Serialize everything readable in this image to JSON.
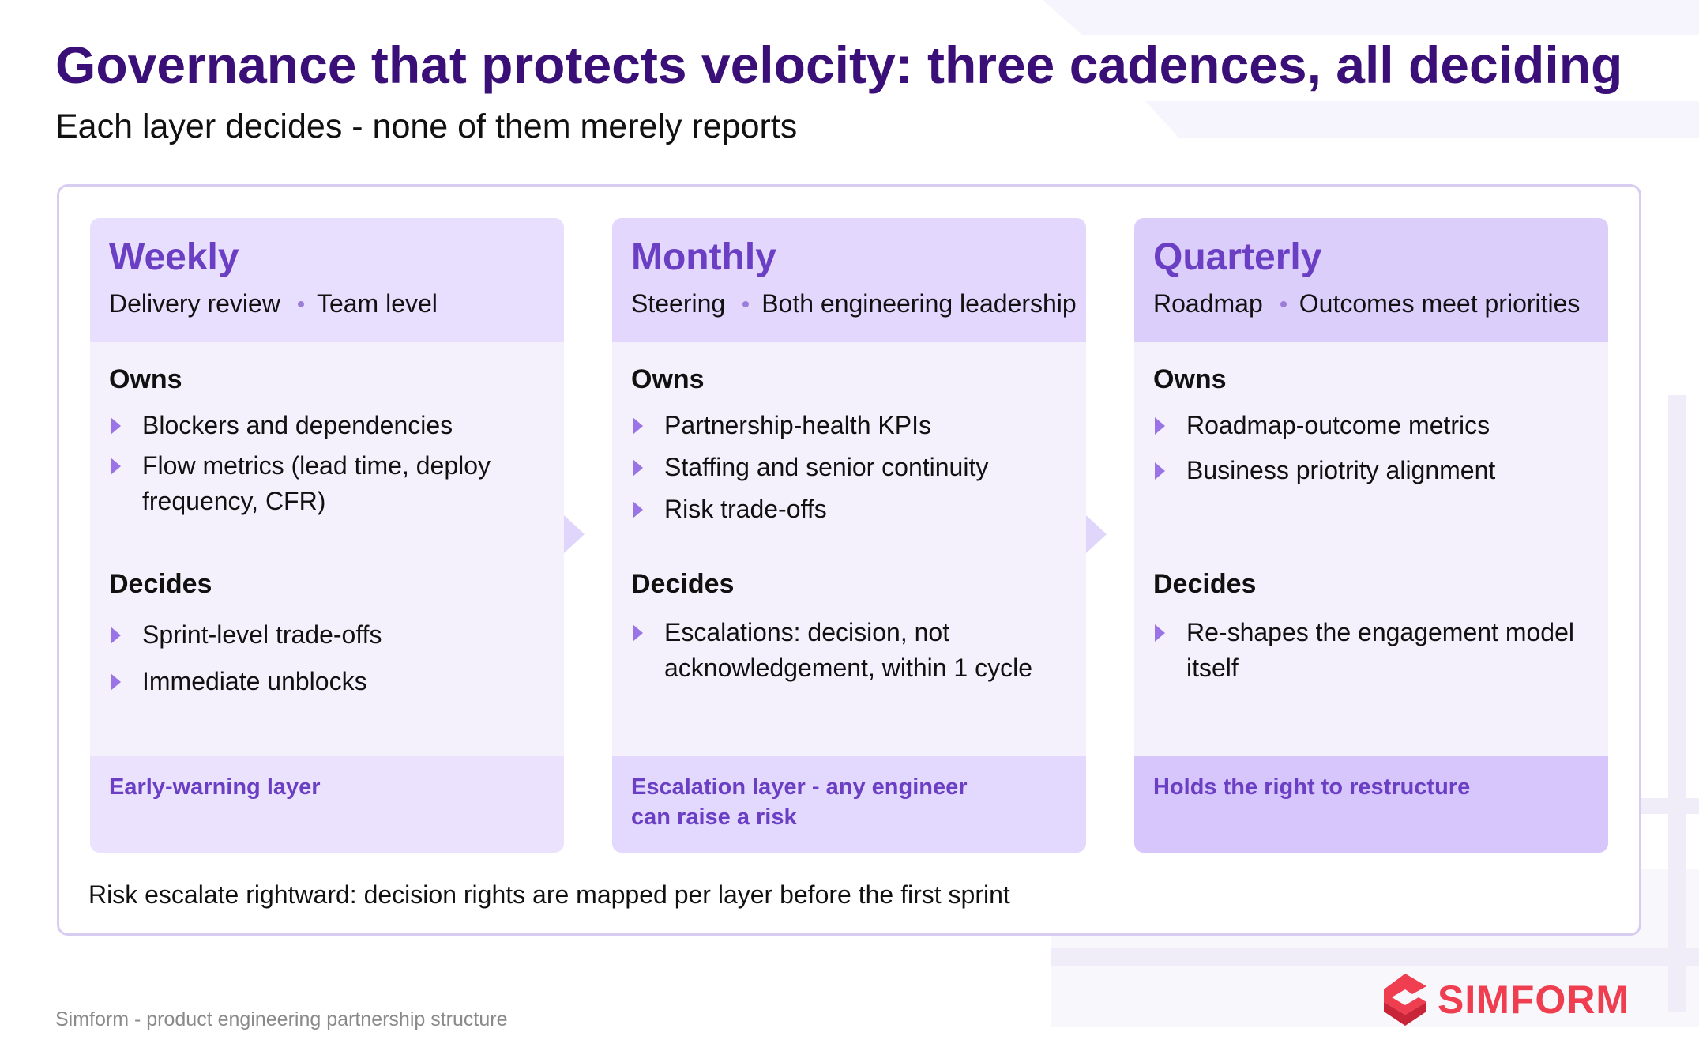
{
  "header": {
    "title": "Governance that protects velocity: three cadences, all deciding",
    "subtitle": "Each layer decides - none of them merely reports"
  },
  "cards": [
    {
      "title": "Weekly",
      "meta_a": "Delivery review",
      "meta_b": "Team level",
      "owns_label": "Owns",
      "owns": [
        "Blockers and dependencies",
        "Flow metrics (lead time, deploy frequency, CFR)"
      ],
      "decides_label": "Decides",
      "decides": [
        "Sprint-level trade-offs",
        "Immediate unblocks"
      ],
      "footer": "Early-warning layer"
    },
    {
      "title": "Monthly",
      "meta_a": "Steering",
      "meta_b": "Both engineering leadership",
      "owns_label": "Owns",
      "owns": [
        "Partnership-health KPIs",
        "Staffing and senior continuity",
        "Risk trade-offs"
      ],
      "decides_label": "Decides",
      "decides": [
        "Escalations: decision, not acknowledgement, within 1 cycle"
      ],
      "footer": "Escalation layer - any engineer can raise a risk"
    },
    {
      "title": "Quarterly",
      "meta_a": "Roadmap",
      "meta_b": "Outcomes meet priorities",
      "owns_label": "Owns",
      "owns": [
        "Roadmap-outcome metrics",
        "Business priotrity alignment"
      ],
      "decides_label": "Decides",
      "decides": [
        "Re-shapes the engagement model itself"
      ],
      "footer": "Holds the right to restructure"
    }
  ],
  "note": "Risk escalate rightward: decision rights are mapped per layer before the first sprint",
  "footer": "Simform - product engineering partnership structure",
  "logo": {
    "text": "SIMFORM",
    "icon": "simform-logo-icon",
    "color": "#ee3e4f"
  },
  "colors": {
    "title": "#3a0f78",
    "accent": "#6b3fc4",
    "bullet": "#9a74e6"
  }
}
